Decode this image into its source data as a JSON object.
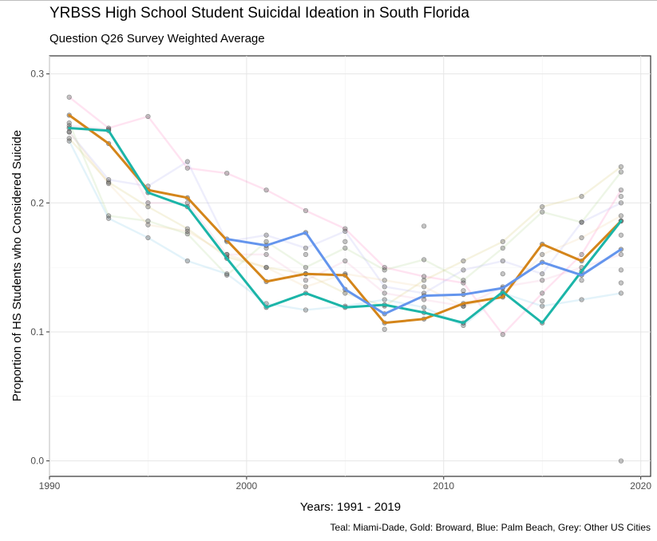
{
  "chart_data": {
    "type": "line",
    "title": "YRBSS High School Student Suicidal Ideation in South Florida",
    "subtitle": "Question Q26 Survey Weighted Average",
    "xlabel": "Years: 1991 - 2019",
    "ylabel": "Proportion of HS Students who Considered Suicide",
    "caption": "Teal: Miami-Dade, Gold: Broward, Blue: Palm Beach, Grey: Other US Cities",
    "xlim": [
      1990,
      2020.5
    ],
    "ylim": [
      -0.012,
      0.314
    ],
    "x_ticks": [
      1990,
      2000,
      2010,
      2020
    ],
    "x_tick_labels": [
      "1990",
      "2000",
      "2010",
      "2020"
    ],
    "y_ticks": [
      0.0,
      0.1,
      0.2,
      0.3
    ],
    "y_tick_labels": [
      "0.0",
      "0.1",
      "0.2",
      "0.3"
    ],
    "grid": true,
    "series": [
      {
        "color": "#1bb5a8",
        "x": [
          1991,
          1993,
          1995,
          1997,
          1999,
          2001,
          2003,
          2005,
          2007,
          2009,
          2011,
          2013,
          2015,
          2017,
          2019
        ],
        "values": [
          0.258,
          0.256,
          0.208,
          0.197,
          0.157,
          0.119,
          0.13,
          0.119,
          0.121,
          0.115,
          0.107,
          0.131,
          0.107,
          0.147,
          0.186
        ]
      },
      {
        "color": "#d4851a",
        "x": [
          1991,
          1993,
          1995,
          1997,
          1999,
          2001,
          2003,
          2005,
          2007,
          2009,
          2011,
          2013,
          2015,
          2017,
          2019
        ],
        "values": [
          0.268,
          0.246,
          0.21,
          0.204,
          0.171,
          0.139,
          0.145,
          0.144,
          0.107,
          0.11,
          0.122,
          0.127,
          0.168,
          0.155,
          0.186
        ]
      },
      {
        "color": "#6495ed",
        "x": [
          1999,
          2001,
          2003,
          2005,
          2007,
          2009,
          2011,
          2013,
          2015,
          2017,
          2019
        ],
        "values": [
          0.172,
          0.167,
          0.177,
          0.133,
          0.114,
          0.128,
          0.129,
          0.134,
          0.154,
          0.144,
          0.164
        ]
      }
    ],
    "background_series": [
      {
        "color": "#ff80c0",
        "x": [
          1991,
          1993,
          1995,
          1997,
          1999,
          2001,
          2003,
          2005,
          2007,
          2009,
          2011,
          2013,
          2015,
          2017,
          2019
        ],
        "values": [
          0.282,
          0.258,
          0.267,
          0.227,
          0.223,
          0.21,
          0.194,
          0.18,
          0.15,
          0.143,
          0.138,
          0.098,
          0.13,
          0.16,
          0.21
        ]
      },
      {
        "color": "#d8c870",
        "x": [
          1991,
          1993,
          1995,
          1997,
          1999,
          2001,
          2003,
          2005,
          2007,
          2009,
          2011,
          2013,
          2015,
          2017,
          2019
        ],
        "values": [
          0.25,
          0.216,
          0.197,
          0.18,
          0.158,
          0.15,
          0.145,
          0.13,
          0.12,
          0.14,
          0.155,
          0.17,
          0.197,
          0.205,
          0.228
        ]
      },
      {
        "color": "#b0d890",
        "x": [
          1991,
          1993,
          1995,
          1997,
          1999,
          2001,
          2003,
          2005,
          2007,
          2009,
          2011,
          2013,
          2015,
          2017,
          2019
        ],
        "values": [
          0.262,
          0.19,
          0.186,
          0.176,
          0.144,
          0.17,
          0.15,
          0.165,
          0.148,
          0.156,
          0.14,
          0.165,
          0.193,
          0.185,
          0.224
        ]
      },
      {
        "color": "#80c8e8",
        "x": [
          1991,
          1993,
          1995,
          1997,
          1999,
          2001,
          2003,
          2005,
          2007,
          2009,
          2011,
          2013,
          2015,
          2017,
          2019
        ],
        "values": [
          0.248,
          0.188,
          0.173,
          0.155,
          0.145,
          0.122,
          0.117,
          0.12,
          0.125,
          0.119,
          0.105,
          0.13,
          0.12,
          0.125,
          0.13
        ]
      },
      {
        "color": "#b0b0f0",
        "x": [
          1991,
          1993,
          1995,
          1997,
          1999,
          2001,
          2003,
          2005,
          2007,
          2009,
          2011,
          2013,
          2015,
          2017,
          2019
        ],
        "values": [
          0.255,
          0.218,
          0.213,
          0.232,
          0.17,
          0.175,
          0.165,
          0.178,
          0.135,
          0.13,
          0.148,
          0.155,
          0.145,
          0.185,
          0.2
        ]
      },
      {
        "color": "#f0b0d0",
        "x": [
          1991,
          1993,
          1995,
          1997,
          1999,
          2001,
          2003,
          2005,
          2007,
          2009,
          2011,
          2013,
          2015,
          2017,
          2019
        ],
        "values": [
          0.26,
          0.257,
          0.2,
          0.2,
          0.16,
          0.16,
          0.14,
          0.155,
          0.13,
          0.125,
          0.12,
          0.135,
          0.14,
          0.15,
          0.16
        ]
      },
      {
        "color": "#f0d0a0",
        "x": [
          1991,
          1993,
          1995,
          1997,
          1999,
          2001,
          2003,
          2005,
          2007,
          2009,
          2011,
          2013,
          2015,
          2017,
          2019
        ],
        "values": [
          0.255,
          0.215,
          0.183,
          0.178,
          0.16,
          0.15,
          0.135,
          0.145,
          0.14,
          0.135,
          0.12,
          0.128,
          0.16,
          0.173,
          0.19
        ]
      }
    ],
    "extra_points": [
      {
        "x": 2019,
        "y": 0.0
      },
      {
        "x": 2019,
        "y": 0.148
      },
      {
        "x": 2019,
        "y": 0.138
      },
      {
        "x": 2009,
        "y": 0.182
      },
      {
        "x": 2005,
        "y": 0.17
      },
      {
        "x": 2017,
        "y": 0.14
      },
      {
        "x": 2015,
        "y": 0.124
      },
      {
        "x": 2013,
        "y": 0.145
      },
      {
        "x": 2011,
        "y": 0.132
      },
      {
        "x": 2007,
        "y": 0.102
      },
      {
        "x": 2003,
        "y": 0.16
      },
      {
        "x": 2001,
        "y": 0.165
      },
      {
        "x": 2019,
        "y": 0.175
      },
      {
        "x": 2019,
        "y": 0.205
      }
    ]
  }
}
